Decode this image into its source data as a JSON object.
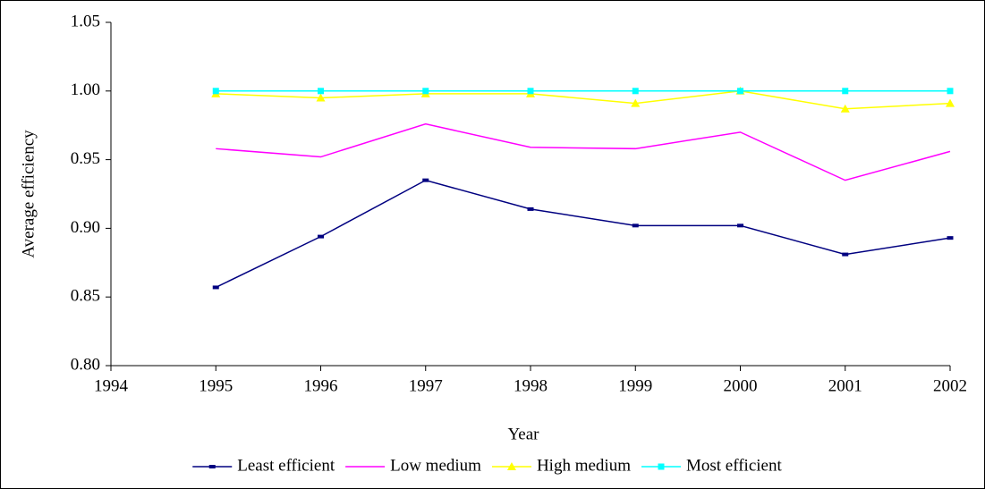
{
  "chart_data": {
    "type": "line",
    "x_label": "Year",
    "y_label": "Average efficiency",
    "x": [
      1995,
      1996,
      1997,
      1998,
      1999,
      2000,
      2001,
      2002
    ],
    "xlim": [
      1994,
      2002
    ],
    "xticks": [
      1994,
      1995,
      1996,
      1997,
      1998,
      1999,
      2000,
      2001,
      2002
    ],
    "ylim": [
      0.8,
      1.05
    ],
    "yticks": [
      {
        "value": 0.8,
        "label": "0.80"
      },
      0.85,
      {
        "value": 0.9,
        "label": "0.90"
      },
      0.95,
      {
        "value": 1.0,
        "label": "1.00"
      },
      1.05
    ],
    "legend": "bottom",
    "series": [
      {
        "name": "Least efficient",
        "color": "#000080",
        "marker": "dash",
        "values": [
          0.857,
          0.894,
          0.935,
          0.914,
          0.902,
          0.902,
          0.881,
          0.893
        ]
      },
      {
        "name": "Low medium",
        "color": "#ff00ff",
        "marker": "none",
        "values": [
          0.958,
          0.952,
          0.976,
          0.959,
          0.958,
          0.97,
          0.935,
          0.956
        ]
      },
      {
        "name": "High medium",
        "color": "#ffff00",
        "marker": "triangle",
        "values": [
          0.998,
          0.995,
          0.998,
          0.998,
          0.991,
          1.0,
          0.987,
          0.991
        ]
      },
      {
        "name": "Most efficient",
        "color": "#00ffff",
        "marker": "square",
        "values": [
          1.0,
          1.0,
          1.0,
          1.0,
          1.0,
          1.0,
          1.0,
          1.0
        ]
      }
    ]
  }
}
